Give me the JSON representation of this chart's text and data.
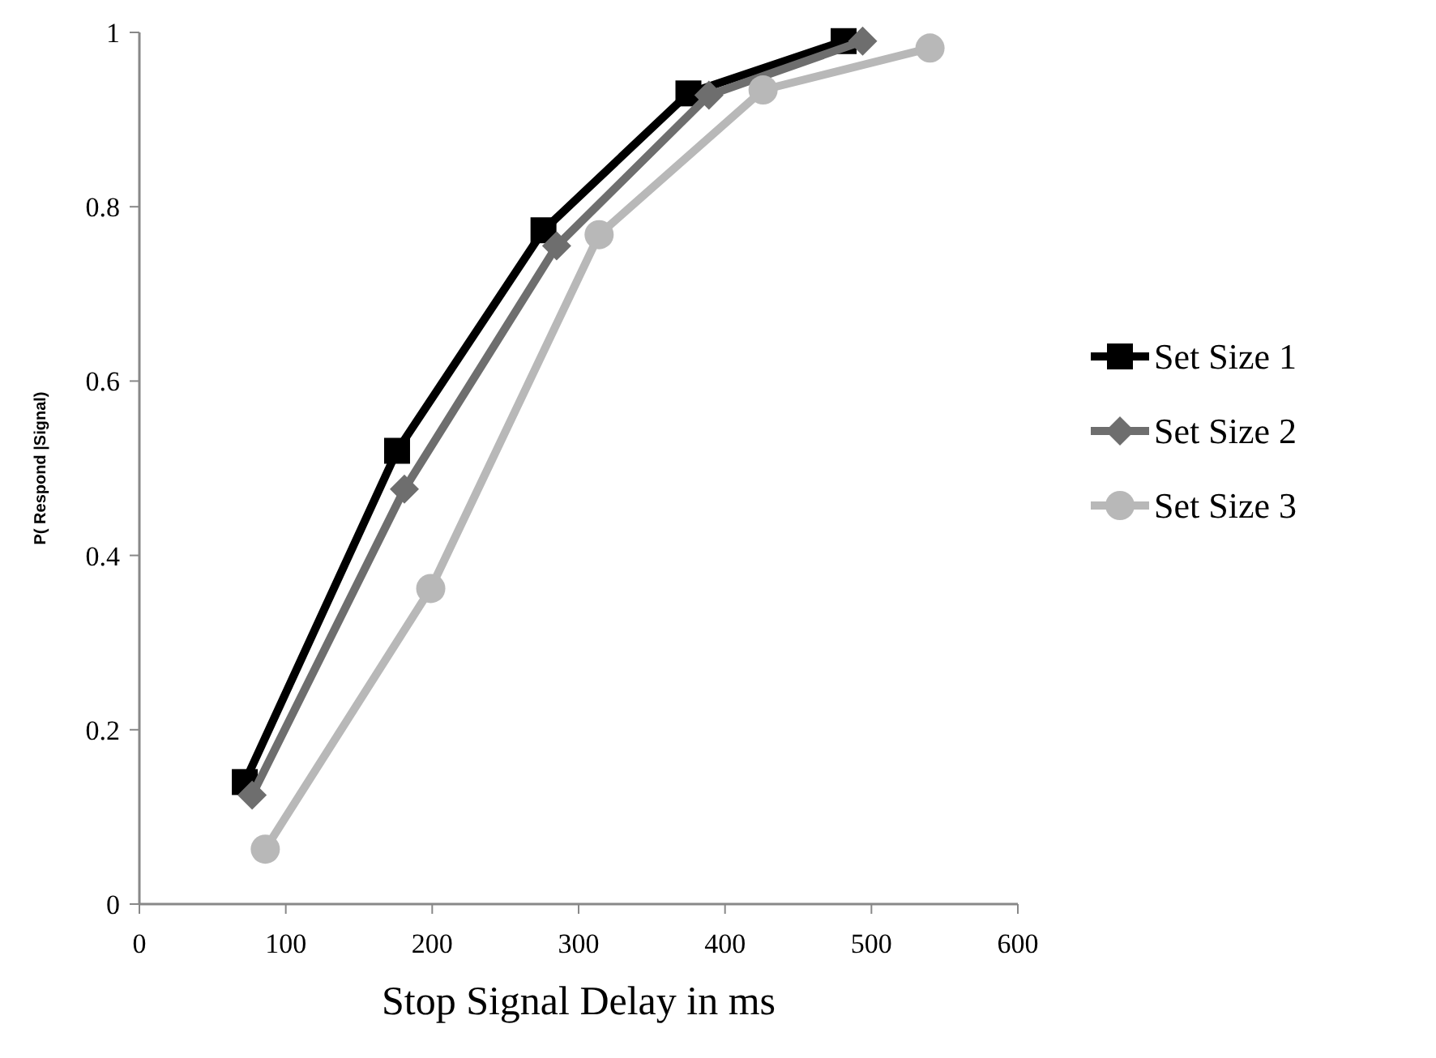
{
  "chart_data": {
    "type": "line",
    "xlabel": "Stop Signal Delay in ms",
    "ylabel": "P( Respond |Signal)",
    "xlim": [
      0,
      600
    ],
    "xticks": [
      0,
      100,
      200,
      300,
      400,
      500,
      600
    ],
    "ylim": [
      0,
      1
    ],
    "yticks": [
      0,
      0.2,
      0.4,
      0.6,
      0.8,
      1
    ],
    "grid": false,
    "legend": "right",
    "series": [
      {
        "name": "Set Size 1",
        "color": "#000000",
        "marker": "square",
        "x": [
          72,
          176,
          276,
          375,
          481
        ],
        "values": [
          0.14,
          0.52,
          0.773,
          0.93,
          0.99
        ]
      },
      {
        "name": "Set Size 2",
        "color": "#6e6e6e",
        "marker": "diamond",
        "x": [
          77,
          181,
          285,
          389,
          494
        ],
        "values": [
          0.125,
          0.476,
          0.755,
          0.928,
          0.99
        ]
      },
      {
        "name": "Set Size 3",
        "color": "#b8b8b8",
        "marker": "circle",
        "x": [
          86,
          199,
          314,
          426,
          540
        ],
        "values": [
          0.063,
          0.362,
          0.768,
          0.934,
          0.982
        ]
      }
    ]
  }
}
